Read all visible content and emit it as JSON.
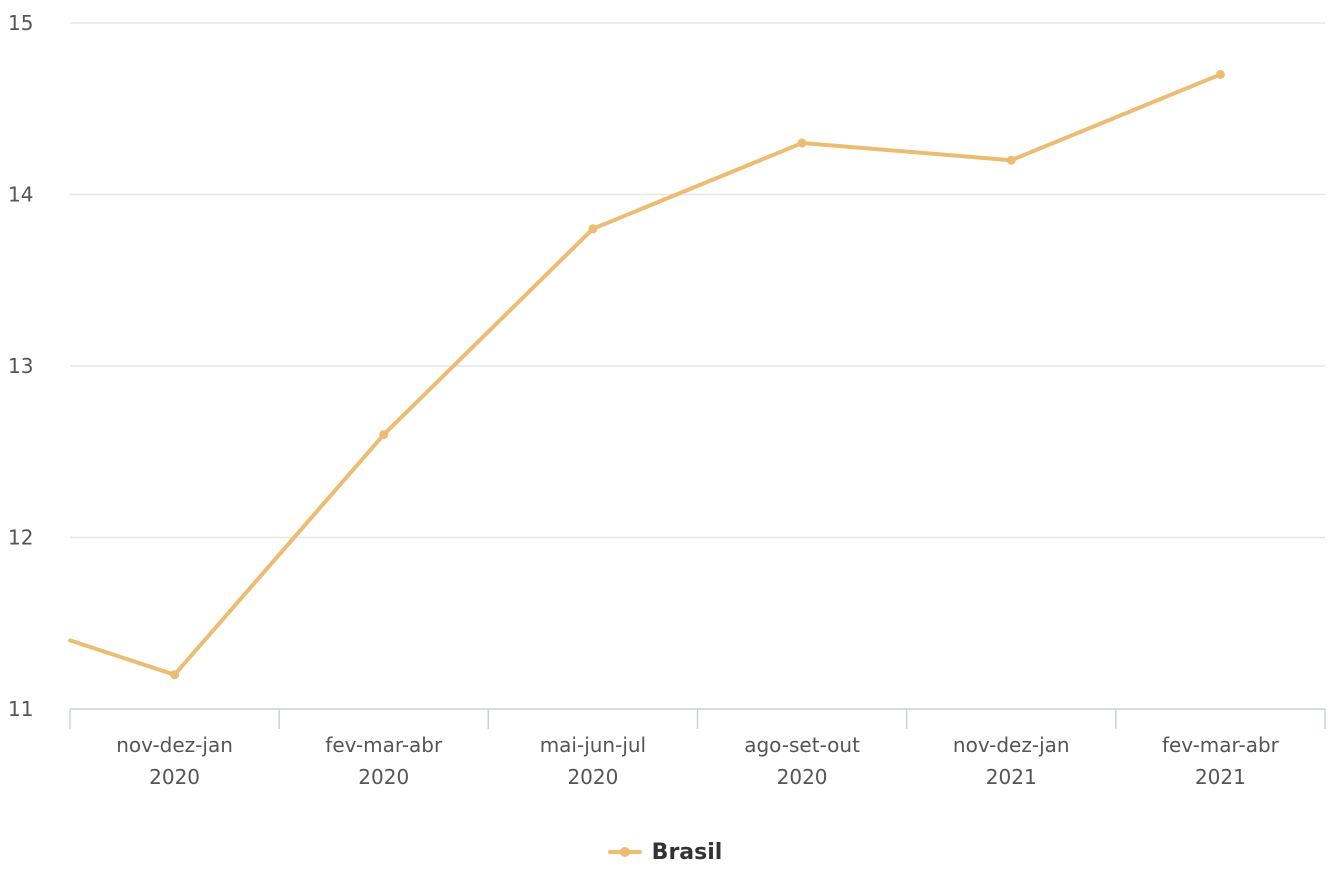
{
  "chart_data": {
    "type": "line",
    "title": "",
    "xlabel": "",
    "ylabel": "",
    "categories": [
      [
        "nov-dez-jan",
        "2020"
      ],
      [
        "fev-mar-abr",
        "2020"
      ],
      [
        "mai-jun-jul",
        "2020"
      ],
      [
        "ago-set-out",
        "2020"
      ],
      [
        "nov-dez-jan",
        "2021"
      ],
      [
        "fev-mar-abr",
        "2021"
      ]
    ],
    "series": [
      {
        "name": "Brasil",
        "color": "#ecbc72",
        "leading_value": 11.4,
        "values": [
          11.2,
          12.6,
          13.8,
          14.3,
          14.2,
          14.7
        ]
      }
    ],
    "yticks": [
      11,
      12,
      13,
      14,
      15
    ],
    "ylim": [
      11,
      15
    ],
    "grid": true,
    "legend_position": "bottom-center"
  }
}
